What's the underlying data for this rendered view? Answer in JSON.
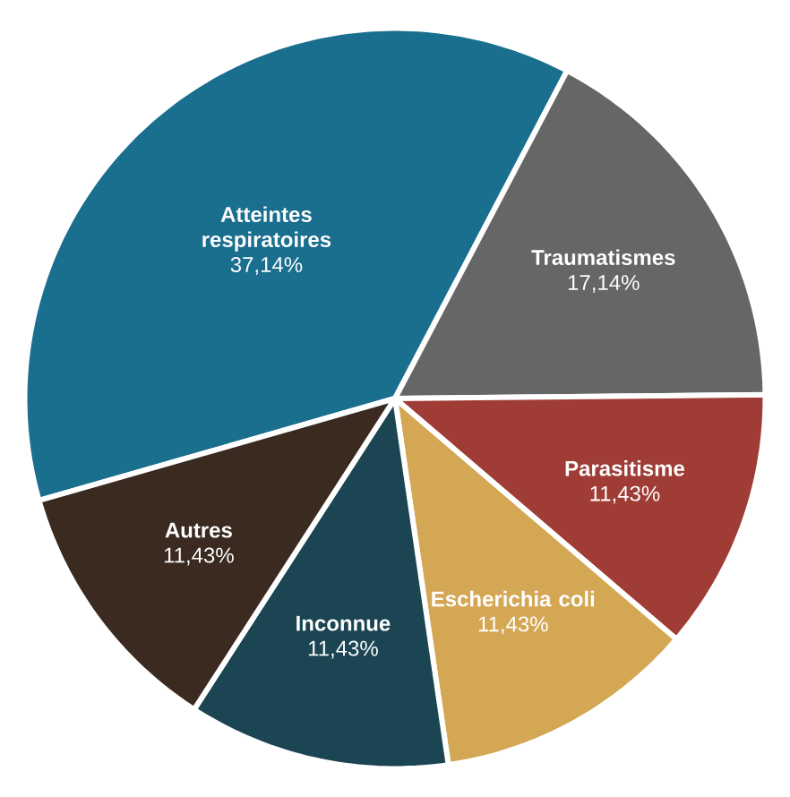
{
  "chart_data": {
    "type": "pie",
    "categories": [
      "Atteintes respiratoires",
      "Traumatismes",
      "Parasitisme",
      "Escherichia coli",
      "Inconnue",
      "Autres"
    ],
    "values": [
      37.14,
      17.14,
      11.43,
      11.43,
      11.43,
      11.43
    ],
    "value_labels": [
      "37,14%",
      "17,14%",
      "11,43%",
      "11,43%",
      "11,43%",
      "11,43%"
    ],
    "colors": [
      "#1a6e8e",
      "#666666",
      "#a03c36",
      "#d4a755",
      "#1b4552",
      "#3a2a20"
    ]
  }
}
